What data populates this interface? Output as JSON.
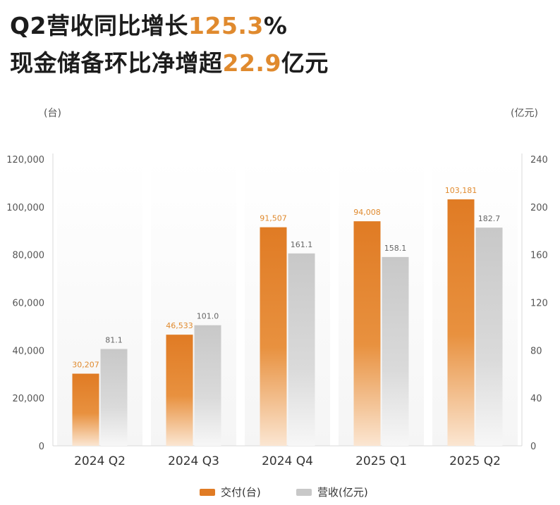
{
  "headline": {
    "line1_text": "Q2营收同比增长",
    "line1_highlight": "125.3",
    "line1_suffix": "%",
    "line2_text": "现金储备环比净增超",
    "line2_highlight": "22.9",
    "line2_suffix": "亿元"
  },
  "colors": {
    "delivery": "#e07b24",
    "revenue": "#c8c8c8",
    "highlight": "#e08a2e"
  },
  "chart_data": {
    "type": "bar",
    "categories": [
      "2024 Q2",
      "2024 Q3",
      "2024 Q4",
      "2025 Q1",
      "2025 Q2"
    ],
    "series": [
      {
        "name": "交付(台)",
        "axis": "left",
        "values": [
          30207,
          46533,
          91507,
          94008,
          103181
        ],
        "labels": [
          "30,207",
          "46,533",
          "91,507",
          "94,008",
          "103,181"
        ]
      },
      {
        "name": "营收(亿元)",
        "axis": "right",
        "values": [
          81.1,
          101.0,
          161.1,
          158.1,
          182.7
        ],
        "labels": [
          "81.1",
          "101.0",
          "161.1",
          "158.1",
          "182.7"
        ]
      }
    ],
    "y_left": {
      "unit": "(台)",
      "range": [
        0,
        120000
      ],
      "ticks": [
        "0",
        "20,000",
        "40,000",
        "60,000",
        "80,000",
        "100,000",
        "120,000"
      ]
    },
    "y_right": {
      "unit": "(亿元)",
      "range": [
        0,
        240
      ],
      "ticks": [
        "0",
        "40",
        "80",
        "120",
        "160",
        "200",
        "240"
      ]
    },
    "legend": [
      "交付(台)",
      "营收(亿元)"
    ],
    "legend_position": "bottom",
    "grid": false
  }
}
